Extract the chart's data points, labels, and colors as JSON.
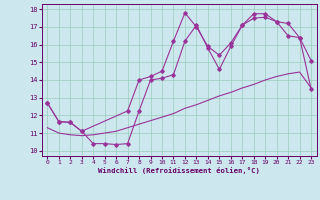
{
  "xlabel": "Windchill (Refroidissement éolien,°C)",
  "bg_color": "#cce8ee",
  "line_color": "#993399",
  "grid_color": "#99ccbb",
  "xlim": [
    -0.5,
    23.5
  ],
  "ylim": [
    9.7,
    18.3
  ],
  "yticks": [
    10,
    11,
    12,
    13,
    14,
    15,
    16,
    17,
    18
  ],
  "xticks": [
    0,
    1,
    2,
    3,
    4,
    5,
    6,
    7,
    8,
    9,
    10,
    11,
    12,
    13,
    14,
    15,
    16,
    17,
    18,
    19,
    20,
    21,
    22,
    23
  ],
  "series1_x": [
    0,
    1,
    2,
    3,
    4,
    5,
    6,
    7,
    8,
    9,
    10,
    11,
    12,
    13,
    14,
    15,
    16,
    17,
    18,
    19,
    20,
    21,
    22,
    23
  ],
  "series1_y": [
    11.3,
    11.0,
    10.9,
    10.85,
    10.9,
    11.0,
    11.1,
    11.3,
    11.5,
    11.7,
    11.9,
    12.1,
    12.4,
    12.6,
    12.85,
    13.1,
    13.3,
    13.55,
    13.75,
    14.0,
    14.2,
    14.35,
    14.45,
    13.55
  ],
  "series2_x": [
    0,
    1,
    2,
    3,
    4,
    5,
    6,
    7,
    8,
    9,
    10,
    11,
    12,
    13,
    14,
    15,
    16,
    17,
    18,
    19,
    20,
    21,
    22,
    23
  ],
  "series2_y": [
    12.7,
    11.65,
    11.6,
    11.1,
    10.4,
    10.4,
    10.35,
    10.4,
    12.25,
    14.0,
    14.1,
    14.3,
    16.2,
    17.1,
    15.8,
    14.6,
    15.9,
    17.1,
    17.5,
    17.55,
    17.3,
    17.2,
    16.4,
    15.1
  ],
  "series3_x": [
    0,
    1,
    2,
    3,
    7,
    8,
    9,
    10,
    11,
    12,
    13,
    14,
    15,
    16,
    17,
    18,
    19,
    20,
    21,
    22,
    23
  ],
  "series3_y": [
    12.7,
    11.65,
    11.6,
    11.1,
    12.25,
    14.0,
    14.2,
    14.5,
    16.2,
    17.8,
    17.0,
    15.9,
    15.4,
    16.1,
    17.1,
    17.75,
    17.75,
    17.3,
    16.5,
    16.4,
    13.5
  ]
}
